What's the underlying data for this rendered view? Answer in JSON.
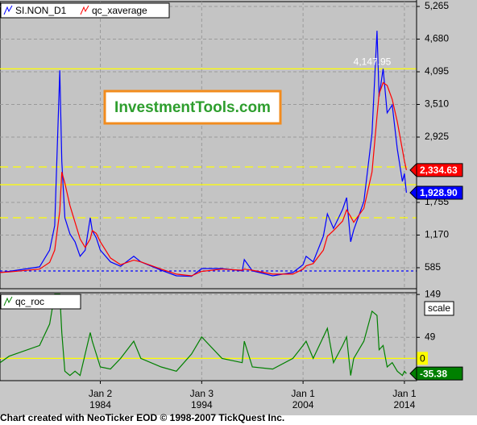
{
  "chart_data": [
    {
      "type": "line",
      "xlim": [
        1974.1,
        2015.2
      ],
      "x": [
        1974.1,
        1975,
        1978,
        1979,
        1979.5,
        1980,
        1980.2,
        1980.5,
        1981,
        1981.5,
        1982,
        1982.5,
        1983,
        1983.2,
        1983.6,
        1984,
        1985,
        1986,
        1987.3,
        1988,
        1990,
        1991.5,
        1993,
        1994,
        1996,
        1998,
        1998.2,
        1999,
        2001,
        2003,
        2004,
        2004.3,
        2005,
        2006,
        2006.4,
        2007,
        2007.9,
        2008.3,
        2008.7,
        2009,
        2010,
        2010.8,
        2011.3,
        2011.5,
        2011.9,
        2012.3,
        2012.8,
        2013.3,
        2013.8,
        2014.0,
        2014.2
      ],
      "series": [
        {
          "name": "SI.NON_D1",
          "color": "#0000ff",
          "values": [
            500,
            520,
            600,
            900,
            1340,
            4120,
            2490,
            1480,
            1190,
            1050,
            790,
            900,
            1480,
            1250,
            1120,
            900,
            690,
            610,
            790,
            690,
            540,
            440,
            430,
            570,
            570,
            530,
            730,
            530,
            440,
            500,
            640,
            790,
            690,
            1150,
            1550,
            1290,
            1630,
            1840,
            1050,
            1260,
            1770,
            2990,
            4830,
            3650,
            4150,
            3360,
            3500,
            2710,
            2130,
            2270,
            1928.9
          ],
          "value_labels": [
            null,
            null,
            null,
            null,
            null,
            null,
            null,
            null,
            null,
            null,
            null,
            null,
            null,
            null,
            null,
            null,
            null,
            null,
            null,
            null,
            null,
            null,
            null,
            null,
            null,
            null,
            null,
            null,
            null,
            null,
            null,
            null,
            null,
            null,
            null,
            null,
            null,
            null,
            null,
            null,
            null,
            null,
            null,
            null,
            null,
            null,
            null,
            null,
            null,
            null,
            "1,928.90"
          ]
        },
        {
          "name": "qc_xaverage",
          "color": "#ff0000",
          "values": [
            500,
            510,
            560,
            680,
            900,
            1600,
            2300,
            2100,
            1700,
            1400,
            1100,
            950,
            1100,
            1250,
            1200,
            1050,
            760,
            640,
            720,
            690,
            560,
            470,
            440,
            520,
            560,
            540,
            560,
            540,
            470,
            470,
            560,
            620,
            660,
            900,
            1150,
            1250,
            1420,
            1620,
            1500,
            1400,
            1650,
            2300,
            3300,
            3700,
            3900,
            3850,
            3600,
            3200,
            2700,
            2500,
            2334.63
          ],
          "value_labels": [
            null,
            null,
            null,
            null,
            null,
            null,
            null,
            null,
            null,
            null,
            null,
            null,
            null,
            null,
            null,
            null,
            null,
            null,
            null,
            null,
            null,
            null,
            null,
            null,
            null,
            null,
            null,
            null,
            null,
            null,
            null,
            null,
            null,
            null,
            null,
            null,
            null,
            null,
            null,
            null,
            null,
            null,
            null,
            null,
            null,
            null,
            null,
            null,
            null,
            null,
            "2,334.63"
          ]
        }
      ],
      "ylim": [
        209,
        5352
      ],
      "yticks": [
        {
          "value": 585,
          "label": "585"
        },
        {
          "value": 1170,
          "label": "1,170"
        },
        {
          "value": 1755,
          "label": "1,755"
        },
        {
          "value": 2925,
          "label": "2,925"
        },
        {
          "value": 3510,
          "label": "3,510"
        },
        {
          "value": 4095,
          "label": "4,095"
        },
        {
          "value": 4680,
          "label": "4,680"
        },
        {
          "value": 5265,
          "label": "5,265"
        }
      ],
      "grid": true,
      "reference_lines": [
        {
          "value": 4147.95,
          "label": "4,147.95",
          "style": "solid",
          "color": "#ffff00"
        },
        {
          "value": 2390,
          "style": "dashed",
          "color": "#ffff00"
        },
        {
          "value": 2073,
          "style": "solid",
          "color": "#ffff00"
        },
        {
          "value": 1480,
          "style": "dashed",
          "color": "#ffff00"
        },
        {
          "value": 527,
          "style": "dotted",
          "color": "#0000ff"
        }
      ],
      "annotation": "InvestmentTools.com"
    },
    {
      "type": "line",
      "xlim": [
        1974.1,
        2015.2
      ],
      "x": [
        1974.1,
        1975,
        1978,
        1979,
        1979.5,
        1980,
        1980.2,
        1980.5,
        1981,
        1981.5,
        1982,
        1982.5,
        1983,
        1983.2,
        1983.6,
        1984,
        1985,
        1986,
        1987.3,
        1988,
        1990,
        1991.5,
        1993,
        1994,
        1996,
        1998,
        1998.2,
        1999,
        2001,
        2003,
        2004,
        2004.3,
        2005,
        2006,
        2006.4,
        2007,
        2007.9,
        2008.3,
        2008.7,
        2009,
        2010,
        2010.8,
        2011.3,
        2011.5,
        2011.9,
        2012.3,
        2012.8,
        2013.3,
        2013.8,
        2014.0,
        2014.2
      ],
      "series": [
        {
          "name": "qc_roc",
          "color": "#008000",
          "values": [
            -10,
            5,
            30,
            80,
            150,
            150,
            60,
            -30,
            -40,
            -30,
            -40,
            10,
            60,
            40,
            10,
            -20,
            -25,
            0,
            40,
            0,
            -20,
            -30,
            10,
            50,
            0,
            -10,
            40,
            -20,
            -25,
            0,
            30,
            40,
            0,
            50,
            70,
            -10,
            30,
            50,
            -40,
            0,
            40,
            110,
            100,
            20,
            30,
            -20,
            -10,
            -30,
            -40,
            -30,
            -35.38
          ]
        }
      ],
      "ylim": [
        -52,
        153
      ],
      "yticks": [
        49,
        149
      ],
      "grid": true,
      "reference_lines": [
        {
          "value": 0,
          "style": "solid",
          "color": "#ffff00"
        }
      ],
      "xticks": [
        {
          "value": 1984.0,
          "label": "Jan 2\n1984"
        },
        {
          "value": 1994.0,
          "label": "Jan 3\n1994"
        },
        {
          "value": 2004.0,
          "label": "Jan 1\n2004"
        },
        {
          "value": 2014.0,
          "label": "Jan 1\n2014"
        }
      ],
      "button": "scale"
    }
  ],
  "footer": "Chart created with NeoTicker EOD © 1998-2007 TickQuest Inc."
}
